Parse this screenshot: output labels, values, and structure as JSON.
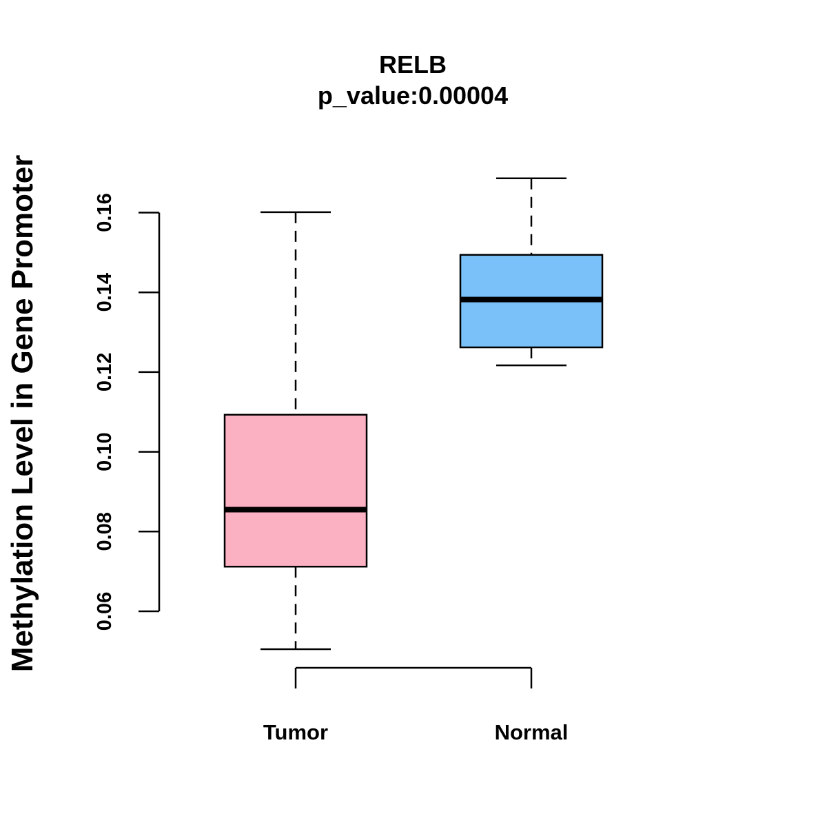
{
  "chart_data": {
    "type": "boxplot",
    "title": "RELB",
    "subtitle": "p_value:0.00004",
    "xlabel": "",
    "ylabel": "Methylation Level in Gene Promoter",
    "ylim": [
      0.06,
      0.16
    ],
    "yticks": [
      "0.06",
      "0.08",
      "0.10",
      "0.12",
      "0.14",
      "0.16"
    ],
    "categories": [
      "Tumor",
      "Normal"
    ],
    "series": [
      {
        "name": "Tumor",
        "color": "#FCB1C3",
        "whisker_low": 0.0505,
        "q1": 0.0712,
        "median": 0.0855,
        "q3": 0.1093,
        "whisker_high": 0.1601
      },
      {
        "name": "Normal",
        "color": "#79C1F8",
        "whisker_low": 0.1217,
        "q1": 0.1262,
        "median": 0.1382,
        "q3": 0.1494,
        "whisker_high": 0.1686
      }
    ],
    "grid": false,
    "legend": "none"
  }
}
